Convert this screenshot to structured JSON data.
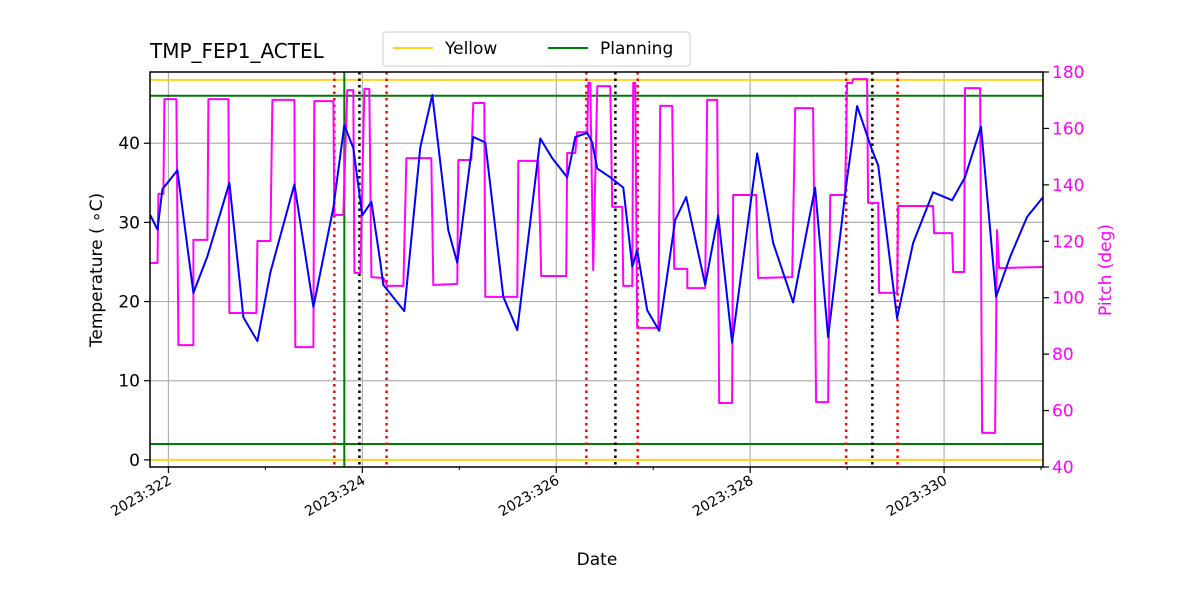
{
  "chart_data": {
    "type": "line",
    "title": "TMP_FEP1_ACTEL",
    "xlabel": "Date",
    "ylabel": "Temperature ($^\\circ$C)",
    "ylabel_display": "Temperature ( ∘C)",
    "y2label": "Pitch (deg)",
    "xlim": [
      321.81,
      331.02
    ],
    "ylim": [
      -0.9,
      49
    ],
    "y2lim": [
      40,
      180
    ],
    "grid": true,
    "legend_placement": "top-center (above plot)",
    "x_ticks": [
      {
        "value": 322,
        "label": "2023:322"
      },
      {
        "value": 324,
        "label": "2023:324"
      },
      {
        "value": 326,
        "label": "2023:326"
      },
      {
        "value": 328,
        "label": "2023:328"
      },
      {
        "value": 330,
        "label": "2023:330"
      }
    ],
    "x_minor_ticks": [
      323,
      325,
      327,
      329,
      331
    ],
    "y_ticks": [
      0,
      10,
      20,
      30,
      40
    ],
    "y2_ticks": [
      40,
      60,
      80,
      100,
      120,
      140,
      160,
      180
    ],
    "legend": [
      {
        "label": "Yellow",
        "color": "#ffd21f"
      },
      {
        "label": "Planning",
        "color": "#007a00"
      }
    ],
    "hlines": [
      {
        "name": "Yellow",
        "value": 48,
        "color": "#ffd21f"
      },
      {
        "name": "Yellow",
        "value": 0,
        "color": "#ffd21f"
      },
      {
        "name": "Planning",
        "value": 46,
        "color": "#007a00"
      },
      {
        "name": "Planning",
        "value": 2,
        "color": "#007a00"
      }
    ],
    "vlines": [
      {
        "value": 323.814,
        "color": "#007a00",
        "style": "solid"
      },
      {
        "value": 323.711,
        "color": "#ff0000",
        "style": "dotted"
      },
      {
        "value": 324.25,
        "color": "#ff0000",
        "style": "dotted"
      },
      {
        "value": 326.31,
        "color": "#ff0000",
        "style": "dotted"
      },
      {
        "value": 326.84,
        "color": "#ff0000",
        "style": "dotted"
      },
      {
        "value": 328.99,
        "color": "#ff0000",
        "style": "dotted"
      },
      {
        "value": 329.52,
        "color": "#ff0000",
        "style": "dotted"
      },
      {
        "value": 323.97,
        "color": "#000000",
        "style": "dotted"
      },
      {
        "value": 326.61,
        "color": "#000000",
        "style": "dotted"
      },
      {
        "value": 329.26,
        "color": "#000000",
        "style": "dotted"
      }
    ],
    "series": [
      {
        "axis": "left",
        "color": "#0000ff",
        "points": [
          [
            321.814,
            30.9
          ],
          [
            321.887,
            29.1
          ],
          [
            321.938,
            34.2
          ],
          [
            322.093,
            36.6
          ],
          [
            322.258,
            21.1
          ],
          [
            322.402,
            25.7
          ],
          [
            322.629,
            35.0
          ],
          [
            322.773,
            18.0
          ],
          [
            322.918,
            15.0
          ],
          [
            323.052,
            23.7
          ],
          [
            323.299,
            34.8
          ],
          [
            323.495,
            19.3
          ],
          [
            323.701,
            31.9
          ],
          [
            323.814,
            42.3
          ],
          [
            323.907,
            39.4
          ],
          [
            324.0,
            30.9
          ],
          [
            324.093,
            32.6
          ],
          [
            324.186,
            24.9
          ],
          [
            324.216,
            22.1
          ],
          [
            324.433,
            18.8
          ],
          [
            324.598,
            39.5
          ],
          [
            324.722,
            46.1
          ],
          [
            324.887,
            29.0
          ],
          [
            324.979,
            24.9
          ],
          [
            325.144,
            40.8
          ],
          [
            325.268,
            40.1
          ],
          [
            325.454,
            20.6
          ],
          [
            325.598,
            16.4
          ],
          [
            325.835,
            40.6
          ],
          [
            325.959,
            38.1
          ],
          [
            326.113,
            35.7
          ],
          [
            326.196,
            40.8
          ],
          [
            326.32,
            41.3
          ],
          [
            326.371,
            40.1
          ],
          [
            326.423,
            36.8
          ],
          [
            326.557,
            35.7
          ],
          [
            326.691,
            34.4
          ],
          [
            326.784,
            24.4
          ],
          [
            326.835,
            26.5
          ],
          [
            326.938,
            18.9
          ],
          [
            327.062,
            16.3
          ],
          [
            327.227,
            30.3
          ],
          [
            327.34,
            33.2
          ],
          [
            327.536,
            22.1
          ],
          [
            327.67,
            30.9
          ],
          [
            327.814,
            14.8
          ],
          [
            328.072,
            38.7
          ],
          [
            328.237,
            27.4
          ],
          [
            328.443,
            19.9
          ],
          [
            328.67,
            34.4
          ],
          [
            328.804,
            15.5
          ],
          [
            328.99,
            34.7
          ],
          [
            329.103,
            44.7
          ],
          [
            329.258,
            39.1
          ],
          [
            329.32,
            37.2
          ],
          [
            329.515,
            17.9
          ],
          [
            329.68,
            27.4
          ],
          [
            329.887,
            33.8
          ],
          [
            330.082,
            32.8
          ],
          [
            330.216,
            35.7
          ],
          [
            330.381,
            42.1
          ],
          [
            330.536,
            20.6
          ],
          [
            330.68,
            25.6
          ],
          [
            330.856,
            30.7
          ],
          [
            331.021,
            33.2
          ]
        ]
      },
      {
        "axis": "right",
        "color": "#ff00ff",
        "points": [
          [
            321.814,
            112.3
          ],
          [
            321.887,
            112.3
          ],
          [
            321.897,
            136.8
          ],
          [
            321.948,
            136.8
          ],
          [
            321.959,
            170.4
          ],
          [
            322.082,
            170.4
          ],
          [
            322.103,
            83.2
          ],
          [
            322.258,
            83.2
          ],
          [
            322.258,
            120.5
          ],
          [
            322.402,
            120.5
          ],
          [
            322.412,
            170.4
          ],
          [
            322.619,
            170.4
          ],
          [
            322.629,
            94.6
          ],
          [
            322.907,
            94.6
          ],
          [
            322.918,
            120.1
          ],
          [
            323.052,
            120.1
          ],
          [
            323.072,
            170.1
          ],
          [
            323.299,
            170.1
          ],
          [
            323.309,
            82.5
          ],
          [
            323.495,
            82.5
          ],
          [
            323.505,
            169.7
          ],
          [
            323.701,
            169.7
          ],
          [
            323.711,
            129.3
          ],
          [
            323.804,
            129.3
          ],
          [
            323.845,
            173.6
          ],
          [
            323.907,
            173.6
          ],
          [
            323.918,
            108.8
          ],
          [
            323.979,
            108.8
          ],
          [
            324.021,
            174.0
          ],
          [
            324.072,
            174.0
          ],
          [
            324.093,
            107.3
          ],
          [
            324.216,
            107.0
          ],
          [
            324.258,
            104.2
          ],
          [
            324.423,
            104.2
          ],
          [
            324.454,
            149.5
          ],
          [
            324.711,
            149.5
          ],
          [
            324.732,
            104.5
          ],
          [
            324.979,
            104.9
          ],
          [
            324.99,
            148.8
          ],
          [
            325.124,
            148.8
          ],
          [
            325.144,
            169.0
          ],
          [
            325.258,
            169.0
          ],
          [
            325.268,
            100.3
          ],
          [
            325.598,
            100.3
          ],
          [
            325.608,
            148.5
          ],
          [
            325.814,
            148.5
          ],
          [
            325.835,
            121.5
          ],
          [
            325.845,
            107.7
          ],
          [
            326.103,
            107.7
          ],
          [
            326.113,
            151.3
          ],
          [
            326.196,
            151.3
          ],
          [
            326.216,
            158.7
          ],
          [
            326.32,
            158.7
          ],
          [
            326.33,
            176.1
          ],
          [
            326.351,
            176.1
          ],
          [
            326.381,
            109.8
          ],
          [
            326.423,
            175.0
          ],
          [
            326.557,
            175.0
          ],
          [
            326.577,
            132.2
          ],
          [
            326.68,
            132.2
          ],
          [
            326.691,
            104.2
          ],
          [
            326.784,
            104.2
          ],
          [
            326.794,
            176.1
          ],
          [
            326.814,
            176.1
          ],
          [
            326.835,
            89.3
          ],
          [
            327.052,
            89.3
          ],
          [
            327.072,
            168.0
          ],
          [
            327.196,
            168.0
          ],
          [
            327.216,
            110.2
          ],
          [
            327.351,
            110.2
          ],
          [
            327.351,
            103.4
          ],
          [
            327.536,
            103.4
          ],
          [
            327.557,
            170.1
          ],
          [
            327.66,
            170.1
          ],
          [
            327.68,
            62.7
          ],
          [
            327.814,
            62.7
          ],
          [
            327.825,
            136.4
          ],
          [
            328.062,
            136.4
          ],
          [
            328.082,
            107.0
          ],
          [
            328.433,
            107.3
          ],
          [
            328.464,
            167.2
          ],
          [
            328.649,
            167.2
          ],
          [
            328.68,
            63.0
          ],
          [
            328.804,
            63.0
          ],
          [
            328.825,
            136.4
          ],
          [
            328.979,
            136.4
          ],
          [
            329.0,
            176.1
          ],
          [
            329.052,
            176.1
          ],
          [
            329.062,
            177.5
          ],
          [
            329.206,
            177.5
          ],
          [
            329.216,
            133.6
          ],
          [
            329.32,
            133.6
          ],
          [
            329.33,
            101.7
          ],
          [
            329.515,
            101.7
          ],
          [
            329.526,
            132.5
          ],
          [
            329.887,
            132.5
          ],
          [
            329.897,
            122.9
          ],
          [
            330.082,
            122.9
          ],
          [
            330.093,
            109.1
          ],
          [
            330.206,
            109.1
          ],
          [
            330.216,
            174.3
          ],
          [
            330.371,
            174.3
          ],
          [
            330.392,
            52.1
          ],
          [
            330.526,
            52.1
          ],
          [
            330.546,
            124.0
          ],
          [
            330.567,
            110.5
          ],
          [
            331.021,
            110.9
          ]
        ]
      }
    ]
  }
}
